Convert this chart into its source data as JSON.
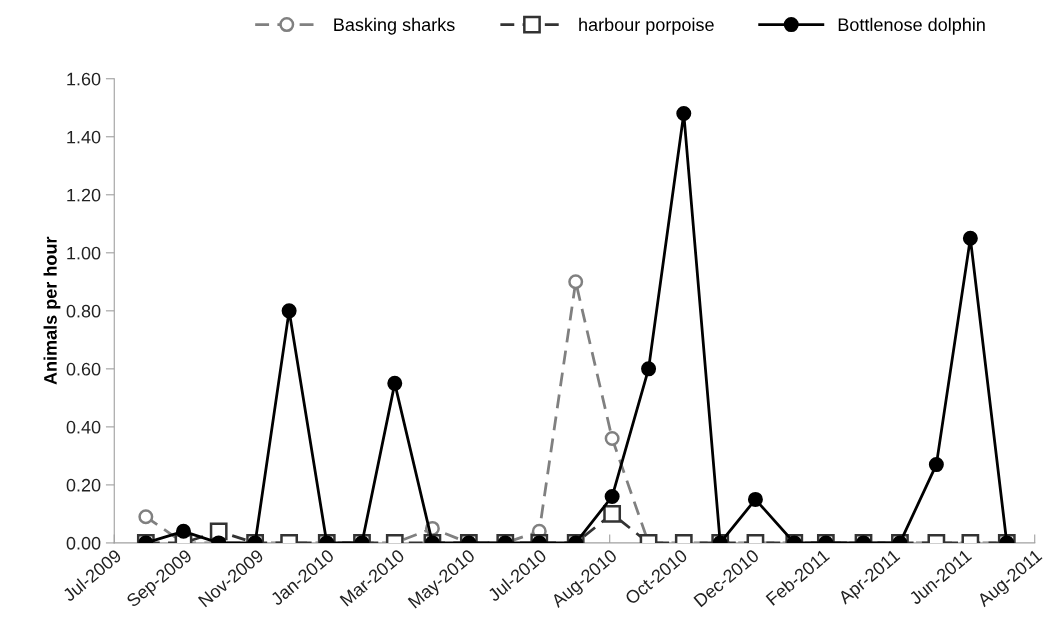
{
  "chart_data": {
    "type": "line",
    "ylabel": "Animals per hour",
    "x": [
      "2009-08-13",
      "2009-09-13",
      "2009-10-12",
      "2009-11-11",
      "2009-12-09",
      "2010-01-09",
      "2010-02-07",
      "2010-03-06",
      "2010-04-06",
      "2010-05-06",
      "2010-06-05",
      "2010-07-03",
      "2010-08-02",
      "2010-09-01",
      "2010-10-01",
      "2010-10-30",
      "2010-11-29",
      "2010-12-28",
      "2011-01-29",
      "2011-02-24",
      "2011-03-27",
      "2011-04-26",
      "2011-05-26",
      "2011-06-23",
      "2011-07-23"
    ],
    "series": [
      {
        "name": "Basking sharks",
        "color": "#808080",
        "marker": "circle",
        "line_style": "dashed",
        "values": [
          0.09,
          0,
          0,
          0,
          0,
          0,
          0,
          0,
          0.05,
          0,
          0,
          0.04,
          0.9,
          0.36,
          0,
          0,
          0,
          0,
          0,
          0,
          0,
          0,
          0,
          0,
          0
        ]
      },
      {
        "name": "harbour porpoise",
        "color": "#333333",
        "marker": "square",
        "line_style": "dashed",
        "values": [
          0,
          0,
          0.04,
          0,
          0,
          0,
          0,
          0,
          0,
          0,
          0,
          0,
          0,
          0.1,
          0,
          0,
          0,
          0,
          0,
          0,
          0,
          0,
          0,
          0,
          0
        ]
      },
      {
        "name": "Bottlenose dolphin",
        "color": "#000000",
        "marker": "circle",
        "line_style": "solid",
        "values": [
          0,
          0.04,
          0,
          0,
          0.8,
          0,
          0,
          0.55,
          0,
          0,
          0,
          0,
          0,
          0.16,
          0.6,
          1.48,
          0,
          0.15,
          0,
          0,
          0,
          0,
          0.27,
          1.05,
          0
        ]
      }
    ],
    "xlim": [
      "2009-07-18",
      "2011-08-15"
    ],
    "xticks": [
      {
        "value": "2009-07-18",
        "label": "Jul-2009"
      },
      {
        "value": "2009-09-14",
        "label": "Sep-2009"
      },
      {
        "value": "2009-11-12",
        "label": "Nov-2009"
      },
      {
        "value": "2010-01-09",
        "label": "Jan-2010"
      },
      {
        "value": "2010-03-08",
        "label": "Mar-2010"
      },
      {
        "value": "2010-05-05",
        "label": "May-2010"
      },
      {
        "value": "2010-07-03",
        "label": "Jul-2010"
      },
      {
        "value": "2010-08-30",
        "label": "Aug-2010"
      },
      {
        "value": "2010-10-27",
        "label": "Oct-2010"
      },
      {
        "value": "2010-12-25",
        "label": "Dec-2010"
      },
      {
        "value": "2011-02-21",
        "label": "Feb-2011"
      },
      {
        "value": "2011-04-20",
        "label": "Apr-2011"
      },
      {
        "value": "2011-06-18",
        "label": "Jun-2011"
      },
      {
        "value": "2011-08-15",
        "label": "Aug-2011"
      }
    ],
    "ylim": [
      0,
      1.6
    ],
    "yticks": [
      {
        "value": 0,
        "label": "0.00"
      },
      {
        "value": 0.2,
        "label": "0.20"
      },
      {
        "value": 0.4,
        "label": "0.40"
      },
      {
        "value": 0.6,
        "label": "0.60"
      },
      {
        "value": 0.8,
        "label": "0.80"
      },
      {
        "value": 1.0,
        "label": "1.00"
      },
      {
        "value": 1.2,
        "label": "1.20"
      },
      {
        "value": 1.4,
        "label": "1.40"
      },
      {
        "value": 1.6,
        "label": "1.60"
      }
    ],
    "grid": false,
    "legend": "top"
  }
}
